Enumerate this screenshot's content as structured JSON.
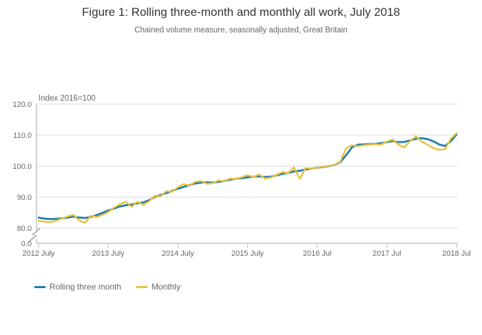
{
  "figure": {
    "title": "Figure 1: Rolling three-month and monthly all work, July 2018",
    "subtitle": "Chained volume measure, seasonally adjusted, Great Britain"
  },
  "chart_data": {
    "type": "line",
    "title": "Figure 1: Rolling three-month and monthly all work, July 2018",
    "subtitle": "Chained volume measure, seasonally adjusted, Great Britain",
    "ylabel": "Index 2016=100",
    "xlabel": "",
    "grid": true,
    "legend_position": "bottom-left",
    "x_start": "2012 July",
    "x_end": "2018 July",
    "frequency": "monthly",
    "x_tick_labels": [
      "2012 July",
      "2013 July",
      "2014 July",
      "2015 July",
      "2016 Jul",
      "2017 Jul",
      "2018 Jul"
    ],
    "x_tick_month_index": [
      0,
      12,
      24,
      36,
      48,
      60,
      72
    ],
    "y_tick_labels": [
      "120.0",
      "110.0",
      "100.0",
      "90.0",
      "80.0"
    ],
    "y_axis_break_label": "0.0",
    "y_axis_has_break": true,
    "ylim": [
      80,
      122
    ],
    "colors": {
      "rolling_three_month": "#1d7dab",
      "monthly": "#e9c13d",
      "gridline": "#d9d9d9",
      "axis_line": "#a6a6a6",
      "tick_mark": "#a9c4d6",
      "axis_text": "#666666"
    },
    "series": [
      {
        "name": "Rolling three month",
        "color": "#1d7dab",
        "values": [
          83.4,
          83.1,
          82.9,
          83.0,
          83.2,
          83.4,
          83.7,
          83.4,
          83.3,
          83.6,
          84.2,
          84.9,
          85.7,
          86.3,
          87.0,
          87.4,
          87.6,
          88.0,
          88.3,
          89.0,
          90.0,
          90.7,
          91.3,
          92.0,
          92.7,
          93.3,
          93.9,
          94.4,
          94.7,
          94.8,
          94.7,
          94.9,
          95.2,
          95.6,
          95.9,
          96.1,
          96.4,
          96.6,
          96.7,
          96.5,
          96.6,
          97.0,
          97.5,
          97.8,
          98.3,
          98.5,
          98.9,
          99.2,
          99.5,
          99.7,
          100.0,
          100.4,
          101.3,
          103.6,
          106.1,
          106.9,
          107.0,
          107.1,
          107.2,
          107.4,
          107.7,
          108.1,
          107.7,
          107.8,
          108.3,
          108.8,
          109.0,
          108.7,
          108.0,
          107.0,
          106.5,
          108.0,
          110.2
        ]
      },
      {
        "name": "Monthly",
        "color": "#e9c13d",
        "values": [
          82.4,
          82.1,
          81.9,
          82.4,
          83.1,
          83.8,
          84.3,
          82.5,
          81.7,
          84.0,
          83.6,
          84.3,
          85.2,
          86.6,
          87.7,
          88.5,
          86.9,
          88.5,
          87.5,
          88.6,
          90.4,
          90.3,
          91.9,
          91.7,
          93.2,
          94.2,
          93.7,
          94.9,
          95.2,
          94.3,
          94.5,
          95.4,
          95.1,
          96.0,
          95.8,
          96.4,
          97.1,
          96.5,
          97.3,
          96.0,
          96.3,
          97.2,
          98.1,
          97.7,
          99.6,
          95.9,
          99.4,
          99.2,
          99.5,
          99.8,
          100.1,
          100.4,
          101.5,
          105.8,
          106.7,
          106.4,
          106.7,
          106.9,
          107.1,
          106.9,
          107.9,
          108.6,
          106.9,
          106.0,
          108.1,
          109.6,
          107.9,
          106.9,
          105.8,
          105.3,
          105.4,
          108.8,
          110.6
        ]
      }
    ]
  }
}
